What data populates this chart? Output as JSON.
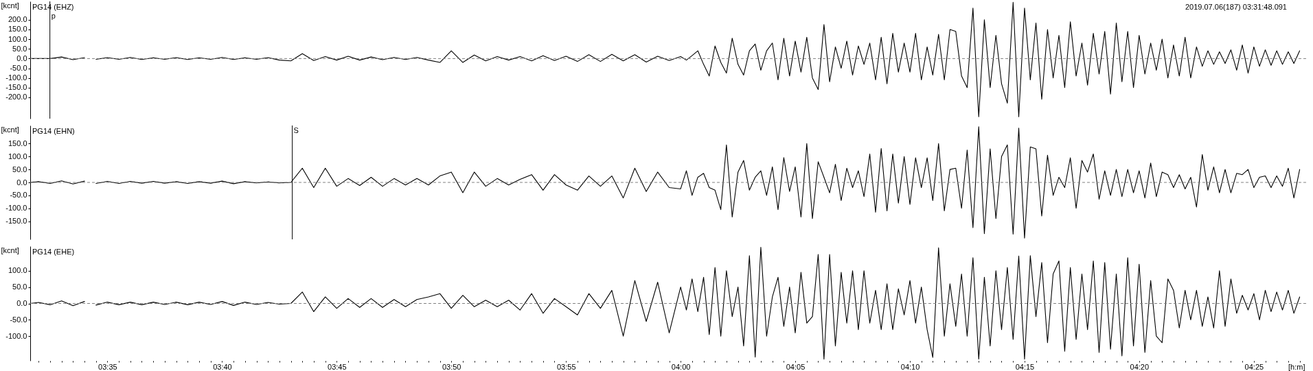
{
  "chart_data": [
    {
      "type": "line",
      "title": "PG14 (EHZ)",
      "ylabel": "[kcnt]",
      "annotations": [
        "2019.07.06(187) 03:31:48.091"
      ],
      "tick_labels": "y",
      "xlim": [
        3.5272,
        4.4547
      ],
      "ylim": [
        -310,
        295
      ],
      "yticks": [
        {
          "value": 200,
          "label": "200.0"
        },
        {
          "value": 150,
          "label": "150.0"
        },
        {
          "value": 100,
          "label": "100.0"
        },
        {
          "value": 50,
          "label": "50.0"
        },
        {
          "value": 0,
          "label": "0.0"
        },
        {
          "value": -50,
          "label": "-50.0"
        },
        {
          "value": -100,
          "label": "-100.0"
        },
        {
          "value": -150,
          "label": "-150.0"
        },
        {
          "value": -200,
          "label": "-200.0"
        }
      ],
      "ref_lines": [
        {
          "axis": "y",
          "value": 0,
          "color": "#808080",
          "line_style": "dashed"
        },
        {
          "axis": "x",
          "value": 3.5415,
          "label": "p",
          "color": "#000000"
        }
      ],
      "x": [
        3.5272,
        3.5333,
        3.5417,
        3.55,
        3.5583,
        3.5667,
        3.5708,
        3.575,
        3.5833,
        3.5917,
        3.6,
        3.6083,
        3.6167,
        3.625,
        3.6333,
        3.6417,
        3.65,
        3.6583,
        3.6667,
        3.675,
        3.6833,
        3.6917,
        3.7,
        3.7083,
        3.7167,
        3.725,
        3.7333,
        3.7417,
        3.75,
        3.7583,
        3.7667,
        3.775,
        3.7833,
        3.7917,
        3.8,
        3.8083,
        3.8167,
        3.825,
        3.8333,
        3.8417,
        3.85,
        3.8583,
        3.8667,
        3.875,
        3.8833,
        3.8917,
        3.9,
        3.9083,
        3.9167,
        3.925,
        3.9333,
        3.9417,
        3.95,
        3.9583,
        3.9667,
        3.975,
        3.9833,
        3.9917,
        4.0,
        4.0042,
        4.0083,
        4.0125,
        4.0167,
        4.0208,
        4.025,
        4.0292,
        4.0333,
        4.0375,
        4.0417,
        4.0458,
        4.05,
        4.0542,
        4.0583,
        4.0625,
        4.0667,
        4.0708,
        4.075,
        4.0792,
        4.0833,
        4.0875,
        4.0917,
        4.0958,
        4.1,
        4.1042,
        4.1083,
        4.1125,
        4.1167,
        4.1208,
        4.125,
        4.1292,
        4.1333,
        4.1375,
        4.1417,
        4.1458,
        4.15,
        4.1542,
        4.1583,
        4.1625,
        4.1667,
        4.1708,
        4.175,
        4.1792,
        4.1833,
        4.1875,
        4.1917,
        4.1958,
        4.2,
        4.2042,
        4.2083,
        4.2125,
        4.2167,
        4.2208,
        4.225,
        4.2292,
        4.2333,
        4.2375,
        4.2417,
        4.2458,
        4.25,
        4.2542,
        4.2583,
        4.2625,
        4.2667,
        4.2708,
        4.275,
        4.2792,
        4.2833,
        4.2875,
        4.2917,
        4.2958,
        4.3,
        4.3042,
        4.3083,
        4.3125,
        4.3167,
        4.3208,
        4.325,
        4.3292,
        4.3333,
        4.3375,
        4.3417,
        4.3458,
        4.35,
        4.3542,
        4.3583,
        4.3625,
        4.3667,
        4.3708,
        4.375,
        4.3792,
        4.3833,
        4.3875,
        4.3917,
        4.3958,
        4.4,
        4.4042,
        4.4083,
        4.4125,
        4.4167,
        4.4208,
        4.425,
        4.4292,
        4.4333,
        4.4375,
        4.4417,
        4.4458,
        4.45
      ],
      "series": [
        {
          "color": "#000000",
          "values": [
            0,
            0,
            0,
            8,
            -6,
            5,
            null,
            -4,
            5,
            -4,
            6,
            -5,
            4,
            -4,
            5,
            -5,
            4,
            -4,
            6,
            -5,
            4,
            -4,
            5,
            -8,
            -12,
            25,
            -10,
            10,
            -8,
            12,
            -8,
            8,
            -6,
            6,
            -5,
            6,
            -8,
            -20,
            40,
            -20,
            18,
            -12,
            10,
            -8,
            10,
            -12,
            15,
            -10,
            12,
            -15,
            20,
            -15,
            22,
            -12,
            20,
            -18,
            12,
            -10,
            10,
            -8,
            15,
            40,
            -30,
            -90,
            65,
            -20,
            -75,
            105,
            -30,
            -85,
            40,
            75,
            -60,
            40,
            80,
            -110,
            105,
            -90,
            90,
            -70,
            110,
            -100,
            -160,
            175,
            -120,
            60,
            -50,
            90,
            -85,
            65,
            -30,
            80,
            -110,
            110,
            -130,
            130,
            -70,
            80,
            -70,
            130,
            -110,
            60,
            -85,
            125,
            -110,
            150,
            140,
            -90,
            -150,
            260,
            -300,
            200,
            -150,
            120,
            -130,
            -230,
            290,
            -300,
            260,
            -110,
            183,
            -210,
            150,
            -100,
            120,
            -150,
            190,
            -90,
            80,
            -137,
            130,
            -80,
            140,
            -183,
            183,
            -120,
            140,
            -150,
            120,
            -80,
            80,
            -60,
            100,
            -100,
            70,
            -90,
            110,
            -100,
            60,
            -40,
            40,
            -30,
            35,
            -25,
            45,
            -60,
            70,
            -75,
            60,
            -40,
            45,
            -35,
            40,
            -30,
            35,
            -25,
            40
          ]
        }
      ]
    },
    {
      "type": "line",
      "title": "PG14 (EHN)",
      "ylabel": "[kcnt]",
      "tick_labels": "y",
      "xlim": [
        3.5272,
        4.4547
      ],
      "ylim": [
        -220,
        220
      ],
      "yticks": [
        {
          "value": 150,
          "label": "150.0"
        },
        {
          "value": 100,
          "label": "100.0"
        },
        {
          "value": 50,
          "label": "50.0"
        },
        {
          "value": 0,
          "label": "0.0"
        },
        {
          "value": -50,
          "label": "-50.0"
        },
        {
          "value": -100,
          "label": "-100.0"
        },
        {
          "value": -150,
          "label": "-150.0"
        }
      ],
      "ref_lines": [
        {
          "axis": "y",
          "value": 0,
          "color": "#808080",
          "line_style": "dashed"
        },
        {
          "axis": "x",
          "value": 3.7177,
          "label": "S",
          "color": "#000000"
        }
      ],
      "x": [
        3.5272,
        3.5333,
        3.5417,
        3.55,
        3.5583,
        3.5667,
        3.5708,
        3.575,
        3.5833,
        3.5917,
        3.6,
        3.6083,
        3.6167,
        3.625,
        3.6333,
        3.6417,
        3.65,
        3.6583,
        3.6667,
        3.675,
        3.6833,
        3.6917,
        3.7,
        3.7083,
        3.7167,
        3.725,
        3.7333,
        3.7417,
        3.75,
        3.7583,
        3.7667,
        3.775,
        3.7833,
        3.7917,
        3.8,
        3.8083,
        3.8167,
        3.825,
        3.8333,
        3.8417,
        3.85,
        3.8583,
        3.8667,
        3.875,
        3.8833,
        3.8917,
        3.9,
        3.9083,
        3.9167,
        3.925,
        3.9333,
        3.9417,
        3.95,
        3.9583,
        3.9667,
        3.975,
        3.9833,
        3.9917,
        4.0,
        4.0042,
        4.0083,
        4.0125,
        4.0167,
        4.0208,
        4.025,
        4.0292,
        4.0333,
        4.0375,
        4.0417,
        4.0458,
        4.05,
        4.0542,
        4.0583,
        4.0625,
        4.0667,
        4.0708,
        4.075,
        4.0792,
        4.0833,
        4.0875,
        4.0917,
        4.0958,
        4.1,
        4.1042,
        4.1083,
        4.1125,
        4.1167,
        4.1208,
        4.125,
        4.1292,
        4.1333,
        4.1375,
        4.1417,
        4.1458,
        4.15,
        4.1542,
        4.1583,
        4.1625,
        4.1667,
        4.1708,
        4.175,
        4.1792,
        4.1833,
        4.1875,
        4.1917,
        4.1958,
        4.2,
        4.2042,
        4.2083,
        4.2125,
        4.2167,
        4.2208,
        4.225,
        4.2292,
        4.2333,
        4.2375,
        4.2417,
        4.2458,
        4.25,
        4.2542,
        4.2583,
        4.2625,
        4.2667,
        4.2708,
        4.275,
        4.2792,
        4.2833,
        4.2875,
        4.2917,
        4.2958,
        4.3,
        4.3042,
        4.3083,
        4.3125,
        4.3167,
        4.3208,
        4.325,
        4.3292,
        4.3333,
        4.3375,
        4.3417,
        4.3458,
        4.35,
        4.3542,
        4.3583,
        4.3625,
        4.3667,
        4.3708,
        4.375,
        4.3792,
        4.3833,
        4.3875,
        4.3917,
        4.3958,
        4.4,
        4.4042,
        4.4083,
        4.4125,
        4.4167,
        4.4208,
        4.425,
        4.4292,
        4.4333,
        4.4375,
        4.4417,
        4.4458,
        4.45
      ],
      "series": [
        {
          "color": "#000000",
          "values": [
            0,
            3,
            -4,
            6,
            -6,
            5,
            null,
            -4,
            4,
            -4,
            4,
            -3,
            4,
            -3,
            3,
            -4,
            3,
            -3,
            5,
            -5,
            3,
            -2,
            2,
            -2,
            0,
            55,
            -20,
            55,
            -15,
            15,
            -12,
            20,
            -15,
            15,
            -10,
            15,
            -10,
            25,
            40,
            -40,
            40,
            -15,
            15,
            -10,
            12,
            30,
            -30,
            30,
            -10,
            -30,
            25,
            -15,
            25,
            -60,
            55,
            -35,
            40,
            -20,
            -25,
            45,
            -50,
            20,
            35,
            -20,
            -30,
            -105,
            145,
            -134,
            40,
            85,
            -30,
            20,
            45,
            -50,
            60,
            -105,
            96,
            -35,
            60,
            -134,
            150,
            -140,
            80,
            20,
            -40,
            70,
            -70,
            55,
            -20,
            45,
            -55,
            110,
            -115,
            131,
            -110,
            110,
            -80,
            100,
            -85,
            95,
            -20,
            95,
            -70,
            150,
            -110,
            50,
            55,
            -100,
            125,
            -175,
            215,
            -198,
            130,
            -140,
            100,
            145,
            -200,
            210,
            -215,
            137,
            130,
            -130,
            105,
            -50,
            20,
            -20,
            95,
            -100,
            85,
            40,
            110,
            -65,
            45,
            -50,
            50,
            -55,
            50,
            -40,
            45,
            -60,
            75,
            -55,
            40,
            30,
            -20,
            30,
            -25,
            20,
            -95,
            108,
            -30,
            60,
            -40,
            50,
            -40,
            35,
            30,
            50,
            -20,
            20,
            25,
            -20,
            25,
            -15,
            55,
            -60,
            50
          ]
        }
      ]
    },
    {
      "type": "line",
      "title": "PG14 (EHE)",
      "ylabel": "[kcnt]",
      "xlabel": "[h:m]",
      "xlim": [
        3.5272,
        4.4547
      ],
      "ylim": [
        -175,
        175
      ],
      "yticks": [
        {
          "value": 100,
          "label": "100.0"
        },
        {
          "value": 50,
          "label": "50.0"
        },
        {
          "value": 0,
          "label": "0.0"
        },
        {
          "value": -50,
          "label": "-50.0"
        },
        {
          "value": -100,
          "label": "-100.0"
        }
      ],
      "xticks": [
        {
          "value": 3.5333,
          "label": null
        },
        {
          "value": 3.5417,
          "label": null
        },
        {
          "value": 3.55,
          "label": null
        },
        {
          "value": 3.5583,
          "label": null
        },
        {
          "value": 3.5667,
          "label": null
        },
        {
          "value": 3.575,
          "label": null
        },
        {
          "value": 3.5833,
          "label": "03:35"
        },
        {
          "value": 3.5917,
          "label": null
        },
        {
          "value": 3.6,
          "label": null
        },
        {
          "value": 3.6083,
          "label": null
        },
        {
          "value": 3.6167,
          "label": null
        },
        {
          "value": 3.625,
          "label": null
        },
        {
          "value": 3.6333,
          "label": null
        },
        {
          "value": 3.6417,
          "label": null
        },
        {
          "value": 3.65,
          "label": null
        },
        {
          "value": 3.6583,
          "label": null
        },
        {
          "value": 3.6667,
          "label": "03:40"
        },
        {
          "value": 3.675,
          "label": null
        },
        {
          "value": 3.6833,
          "label": null
        },
        {
          "value": 3.6917,
          "label": null
        },
        {
          "value": 3.7,
          "label": null
        },
        {
          "value": 3.7083,
          "label": null
        },
        {
          "value": 3.7167,
          "label": null
        },
        {
          "value": 3.725,
          "label": null
        },
        {
          "value": 3.7333,
          "label": null
        },
        {
          "value": 3.7417,
          "label": null
        },
        {
          "value": 3.75,
          "label": "03:45"
        },
        {
          "value": 3.7583,
          "label": null
        },
        {
          "value": 3.7667,
          "label": null
        },
        {
          "value": 3.775,
          "label": null
        },
        {
          "value": 3.7833,
          "label": null
        },
        {
          "value": 3.7917,
          "label": null
        },
        {
          "value": 3.8,
          "label": null
        },
        {
          "value": 3.8083,
          "label": null
        },
        {
          "value": 3.8167,
          "label": null
        },
        {
          "value": 3.825,
          "label": null
        },
        {
          "value": 3.8333,
          "label": "03:50"
        },
        {
          "value": 3.8417,
          "label": null
        },
        {
          "value": 3.85,
          "label": null
        },
        {
          "value": 3.8583,
          "label": null
        },
        {
          "value": 3.8667,
          "label": null
        },
        {
          "value": 3.875,
          "label": null
        },
        {
          "value": 3.8833,
          "label": null
        },
        {
          "value": 3.8917,
          "label": null
        },
        {
          "value": 3.9,
          "label": null
        },
        {
          "value": 3.9083,
          "label": null
        },
        {
          "value": 3.9167,
          "label": "03:55"
        },
        {
          "value": 3.925,
          "label": null
        },
        {
          "value": 3.9333,
          "label": null
        },
        {
          "value": 3.9417,
          "label": null
        },
        {
          "value": 3.95,
          "label": null
        },
        {
          "value": 3.9583,
          "label": null
        },
        {
          "value": 3.9667,
          "label": null
        },
        {
          "value": 3.975,
          "label": null
        },
        {
          "value": 3.9833,
          "label": null
        },
        {
          "value": 3.9917,
          "label": null
        },
        {
          "value": 4.0,
          "label": "04:00"
        },
        {
          "value": 4.0083,
          "label": null
        },
        {
          "value": 4.0167,
          "label": null
        },
        {
          "value": 4.025,
          "label": null
        },
        {
          "value": 4.0333,
          "label": null
        },
        {
          "value": 4.0417,
          "label": null
        },
        {
          "value": 4.05,
          "label": null
        },
        {
          "value": 4.0583,
          "label": null
        },
        {
          "value": 4.0667,
          "label": null
        },
        {
          "value": 4.075,
          "label": null
        },
        {
          "value": 4.0833,
          "label": "04:05"
        },
        {
          "value": 4.0917,
          "label": null
        },
        {
          "value": 4.1,
          "label": null
        },
        {
          "value": 4.1083,
          "label": null
        },
        {
          "value": 4.1167,
          "label": null
        },
        {
          "value": 4.125,
          "label": null
        },
        {
          "value": 4.1333,
          "label": null
        },
        {
          "value": 4.1417,
          "label": null
        },
        {
          "value": 4.15,
          "label": null
        },
        {
          "value": 4.1583,
          "label": null
        },
        {
          "value": 4.1667,
          "label": "04:10"
        },
        {
          "value": 4.175,
          "label": null
        },
        {
          "value": 4.1833,
          "label": null
        },
        {
          "value": 4.1917,
          "label": null
        },
        {
          "value": 4.2,
          "label": null
        },
        {
          "value": 4.2083,
          "label": null
        },
        {
          "value": 4.2167,
          "label": null
        },
        {
          "value": 4.225,
          "label": null
        },
        {
          "value": 4.2333,
          "label": null
        },
        {
          "value": 4.2417,
          "label": null
        },
        {
          "value": 4.25,
          "label": "04:15"
        },
        {
          "value": 4.2583,
          "label": null
        },
        {
          "value": 4.2667,
          "label": null
        },
        {
          "value": 4.275,
          "label": null
        },
        {
          "value": 4.2833,
          "label": null
        },
        {
          "value": 4.2917,
          "label": null
        },
        {
          "value": 4.3,
          "label": null
        },
        {
          "value": 4.3083,
          "label": null
        },
        {
          "value": 4.3167,
          "label": null
        },
        {
          "value": 4.325,
          "label": null
        },
        {
          "value": 4.3333,
          "label": "04:20"
        },
        {
          "value": 4.3417,
          "label": null
        },
        {
          "value": 4.35,
          "label": null
        },
        {
          "value": 4.3583,
          "label": null
        },
        {
          "value": 4.3667,
          "label": null
        },
        {
          "value": 4.375,
          "label": null
        },
        {
          "value": 4.3833,
          "label": null
        },
        {
          "value": 4.3917,
          "label": null
        },
        {
          "value": 4.4,
          "label": null
        },
        {
          "value": 4.4083,
          "label": null
        },
        {
          "value": 4.4167,
          "label": "04:25"
        },
        {
          "value": 4.425,
          "label": null
        },
        {
          "value": 4.4333,
          "label": null
        },
        {
          "value": 4.4417,
          "label": null
        },
        {
          "value": 4.45,
          "label": null
        }
      ],
      "ref_lines": [
        {
          "axis": "y",
          "value": 0,
          "color": "#808080",
          "line_style": "dashed"
        }
      ],
      "x": [
        3.5272,
        3.5333,
        3.5417,
        3.55,
        3.5583,
        3.5667,
        3.5708,
        3.575,
        3.5833,
        3.5917,
        3.6,
        3.6083,
        3.6167,
        3.625,
        3.6333,
        3.6417,
        3.65,
        3.6583,
        3.6667,
        3.675,
        3.6833,
        3.6917,
        3.7,
        3.7083,
        3.7167,
        3.725,
        3.7333,
        3.7417,
        3.75,
        3.7583,
        3.7667,
        3.775,
        3.7833,
        3.7917,
        3.8,
        3.8083,
        3.8167,
        3.825,
        3.8333,
        3.8417,
        3.85,
        3.8583,
        3.8667,
        3.875,
        3.8833,
        3.8917,
        3.9,
        3.9083,
        3.9167,
        3.925,
        3.9333,
        3.9417,
        3.95,
        3.9583,
        3.9667,
        3.975,
        3.9833,
        3.9917,
        4.0,
        4.0042,
        4.0083,
        4.0125,
        4.0167,
        4.0208,
        4.025,
        4.0292,
        4.0333,
        4.0375,
        4.0417,
        4.0458,
        4.05,
        4.0542,
        4.0583,
        4.0625,
        4.0667,
        4.0708,
        4.075,
        4.0792,
        4.0833,
        4.0875,
        4.0917,
        4.0958,
        4.1,
        4.1042,
        4.1083,
        4.1125,
        4.1167,
        4.1208,
        4.125,
        4.1292,
        4.1333,
        4.1375,
        4.1417,
        4.1458,
        4.15,
        4.1542,
        4.1583,
        4.1625,
        4.1667,
        4.1708,
        4.175,
        4.1792,
        4.1833,
        4.1875,
        4.1917,
        4.1958,
        4.2,
        4.2042,
        4.2083,
        4.2125,
        4.2167,
        4.2208,
        4.225,
        4.2292,
        4.2333,
        4.2375,
        4.2417,
        4.2458,
        4.25,
        4.2542,
        4.2583,
        4.2625,
        4.2667,
        4.2708,
        4.275,
        4.2792,
        4.2833,
        4.2875,
        4.2917,
        4.2958,
        4.3,
        4.3042,
        4.3083,
        4.3125,
        4.3167,
        4.3208,
        4.325,
        4.3292,
        4.3333,
        4.3375,
        4.3417,
        4.3458,
        4.35,
        4.3542,
        4.3583,
        4.3625,
        4.3667,
        4.3708,
        4.375,
        4.3792,
        4.3833,
        4.3875,
        4.3917,
        4.3958,
        4.4,
        4.4042,
        4.4083,
        4.4125,
        4.4167,
        4.4208,
        4.425,
        4.4292,
        4.4333,
        4.4375,
        4.4417,
        4.4458,
        4.45
      ],
      "series": [
        {
          "color": "#000000",
          "values": [
            0,
            3,
            -4,
            8,
            -7,
            6,
            null,
            -5,
            4,
            -4,
            4,
            -4,
            4,
            -3,
            4,
            -4,
            4,
            -3,
            6,
            -6,
            4,
            -3,
            3,
            -2,
            0,
            35,
            -25,
            20,
            -15,
            15,
            -12,
            15,
            -12,
            12,
            -10,
            12,
            20,
            30,
            -15,
            25,
            -10,
            10,
            -10,
            10,
            -20,
            30,
            -30,
            15,
            -10,
            -35,
            30,
            -15,
            40,
            -100,
            70,
            -55,
            65,
            -90,
            50,
            -20,
            75,
            -25,
            80,
            -95,
            110,
            -100,
            100,
            -40,
            50,
            -130,
            146,
            -164,
            172,
            -100,
            20,
            80,
            -70,
            50,
            -90,
            95,
            -60,
            -40,
            150,
            -170,
            150,
            -130,
            95,
            -60,
            100,
            -80,
            100,
            -60,
            40,
            -80,
            60,
            -80,
            45,
            -35,
            70,
            -60,
            50,
            -80,
            -165,
            170,
            -100,
            60,
            -70,
            90,
            -100,
            140,
            -170,
            80,
            -130,
            100,
            -80,
            110,
            -110,
            145,
            -170,
            146,
            -40,
            125,
            -120,
            90,
            130,
            -146,
            110,
            -110,
            90,
            -80,
            130,
            -150,
            125,
            -140,
            90,
            -160,
            140,
            -130,
            120,
            -150,
            70,
            -100,
            -120,
            75,
            40,
            -75,
            40,
            -50,
            40,
            -70,
            20,
            -75,
            100,
            -70,
            75,
            -30,
            25,
            -20,
            30,
            -50,
            40,
            -25,
            35,
            -20,
            40,
            -30,
            20
          ]
        }
      ]
    }
  ]
}
